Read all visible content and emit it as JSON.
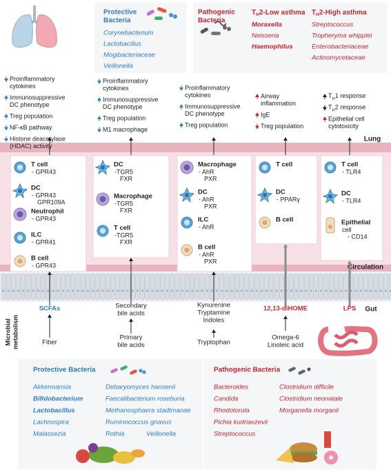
{
  "top_protective": {
    "title": [
      "Protective",
      "Bacteria"
    ],
    "species": [
      "Corynebacterium",
      "Lactobacillus",
      "Mogibacteriaceae",
      "Veillonella"
    ]
  },
  "top_pathogenic": {
    "title": [
      "Pathogenic",
      "Bacteria"
    ],
    "low": {
      "heading": {
        "pre": "T",
        "sub": "H",
        "post": "2-Low asthma"
      },
      "species": [
        {
          "text": "Moraxella",
          "bold": true
        },
        {
          "text": "Neisseria",
          "bold": false
        },
        {
          "text": "Haemophilus",
          "bold": true
        }
      ]
    },
    "high": {
      "heading": {
        "pre": "T",
        "sub": "H",
        "post": "2-High asthma"
      },
      "species": [
        {
          "text": "Streptococcus",
          "bold": false
        },
        {
          "text": "Tropheryma whipplei",
          "bold": false
        },
        {
          "text": "Enterobacteriaceae",
          "bold": false
        },
        {
          "text": "Actinomycetaceae",
          "bold": false
        }
      ]
    }
  },
  "effects": [
    [
      {
        "dir": "down",
        "lines": [
          "Proinflammatory",
          "cytokines"
        ]
      },
      {
        "dir": "up",
        "lines": [
          "Immunosuppressive",
          "DC phenotype"
        ]
      },
      {
        "dir": "up",
        "lines": [
          "Treg population"
        ]
      },
      {
        "dir": "down",
        "lines": [
          "NF-κB pathway"
        ]
      },
      {
        "dir": "down",
        "lines": [
          "Histone deacetylase",
          "(HDAC) activity"
        ]
      }
    ],
    [
      {
        "dir": "down",
        "lines": [
          "Proinflammatory",
          "cytokines"
        ]
      },
      {
        "dir": "up",
        "lines": [
          "Immunosuppressive",
          "DC phenotype"
        ]
      },
      {
        "dir": "up",
        "lines": [
          "Treg population"
        ]
      },
      {
        "dir": "down",
        "lines": [
          "M1 macrophage"
        ]
      }
    ],
    [
      {
        "dir": "down",
        "lines": [
          "Proinflammatory",
          "cytokines"
        ]
      },
      {
        "dir": "up",
        "lines": [
          "Immunosuppressive",
          "DC phenotype"
        ]
      },
      {
        "dir": "up",
        "lines": [
          "Treg population"
        ]
      }
    ],
    [
      {
        "dir": "up",
        "lines": [
          "Airway",
          "inflammation"
        ]
      },
      {
        "dir": "up",
        "lines": [
          "IgE"
        ]
      },
      {
        "dir": "down",
        "lines": [
          "Treg population"
        ]
      }
    ],
    [
      {
        "dir": "up",
        "lines": [
          {
            "pre": "T",
            "sub": "H",
            "post": "1 response"
          }
        ]
      },
      {
        "dir": "down",
        "lines": [
          {
            "pre": "T",
            "sub": "H",
            "post": "2 response"
          }
        ]
      },
      {
        "dir": "up",
        "lines": [
          "Epithelial cell",
          "cytotoxicity"
        ]
      }
    ]
  ],
  "regions": {
    "lung": "Lung",
    "circulation": "Circulation",
    "gut": "Gut",
    "metabolism": [
      "Microbial",
      "metabolism"
    ]
  },
  "cells": [
    [
      {
        "name": "T cell",
        "receptors": [
          "- GPR43"
        ]
      },
      {
        "name": "DC",
        "receptors": [
          "- GPR43",
          "GPR109A"
        ]
      },
      {
        "name": "Neutrophil",
        "receptors": [
          "- GPR43"
        ]
      },
      {
        "name": "ILC",
        "receptors": [
          "- GPR41"
        ]
      },
      {
        "name": "B cell",
        "receptors": [
          "- GPR43"
        ]
      }
    ],
    [
      {
        "name": "DC",
        "receptors": [
          "-TGR5",
          "FXR"
        ]
      },
      {
        "name": "Macrophage",
        "receptors": [
          "-TGR5",
          "FXR"
        ]
      },
      {
        "name": "T cell",
        "receptors": [
          "-TGR5",
          "FXR"
        ]
      }
    ],
    [
      {
        "name": "Macrophage",
        "receptors": [
          "- AhR",
          "PXR"
        ]
      },
      {
        "name": "DC",
        "receptors": [
          "- AhR",
          "PXR"
        ]
      },
      {
        "name": "ILC",
        "receptors": [
          "- AhR"
        ]
      },
      {
        "name": "B cell",
        "receptors": [
          "- AhR",
          "PXR"
        ]
      }
    ],
    [
      {
        "name": "T cell",
        "receptors": []
      },
      {
        "name": "DC",
        "receptors": [
          "- PPARγ"
        ]
      },
      {
        "name": "B cell",
        "receptors": []
      }
    ],
    [
      {
        "name": "T cell",
        "receptors": [
          "- TLR4"
        ]
      },
      {
        "name": "DC",
        "receptors": [
          "- TLR4"
        ]
      },
      {
        "name": "Epithelial",
        "receptors": [
          "cell",
          "- CD14"
        ]
      }
    ]
  ],
  "metabolites": [
    [
      "SCFAs"
    ],
    [
      "Secondary",
      "bile acids"
    ],
    [
      "Kynurenine",
      "Tryptamine",
      "Indoles"
    ],
    [
      "12,13-diHOME"
    ],
    [
      "LPS"
    ]
  ],
  "precursors": [
    [
      "Fiber"
    ],
    [
      "Primary",
      "bile acids"
    ],
    [
      "Tryptophan"
    ],
    [
      "Omega-6",
      "Linoleic acid"
    ]
  ],
  "bottom_protective": {
    "title": "Protective Bacteria",
    "rows": [
      [
        {
          "text": "Akkermansia",
          "bold": false
        },
        {
          "text": "Debaryomyces hansenii",
          "bold": false
        }
      ],
      [
        {
          "text": "Bifidobacterium",
          "bold": true
        },
        {
          "text": "Faecalibacterium roseburia",
          "bold": false
        }
      ],
      [
        {
          "text": "Lactobacillus",
          "bold": true
        },
        {
          "text": "Methanosphaera stadtmanae",
          "bold": false
        }
      ],
      [
        {
          "text": "Lachnospira",
          "bold": false
        },
        {
          "text": "Ruminococcus gnavus",
          "bold": false
        }
      ],
      [
        {
          "text": "Malassezia",
          "bold": false
        },
        {
          "text": "Rothia",
          "bold": false
        },
        {
          "text": "Veillonella",
          "bold": false
        }
      ]
    ]
  },
  "bottom_pathogenic": {
    "title": "Pathogenic Bacteria",
    "rows": [
      [
        {
          "text": "Bacteroides",
          "bold": false
        },
        {
          "text": "Clostridium difficile",
          "bold": false
        }
      ],
      [
        {
          "text": "Candida",
          "bold": false
        },
        {
          "text": "Clostridium neonatale",
          "bold": false
        }
      ],
      [
        {
          "text": "Rhodotorula",
          "bold": false
        },
        {
          "text": "Morganella morganii",
          "bold": false
        }
      ],
      [
        {
          "text": "Pichia kudriavzevii",
          "bold": false
        }
      ],
      [
        {
          "text": "Streptococcus",
          "bold": false
        }
      ]
    ]
  }
}
